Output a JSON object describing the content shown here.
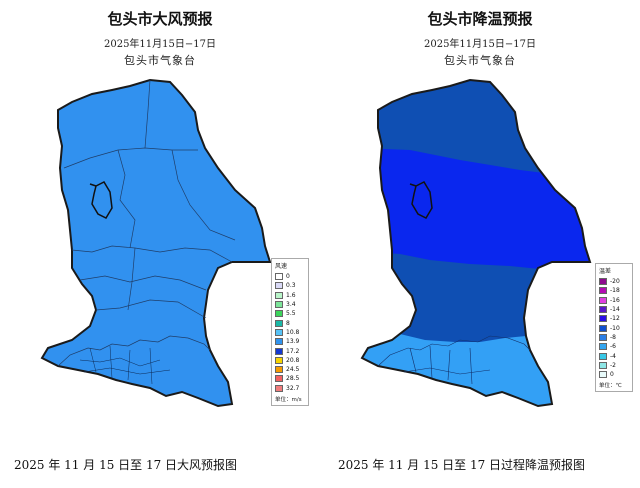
{
  "wind": {
    "title": "包头市大风预报",
    "date_range": "2025年11月15日−17日",
    "source": "包头市气象台",
    "legend_title": "风速",
    "legend_unit": "单位：m/s",
    "legend": [
      {
        "label": "0",
        "color": "#ffffff"
      },
      {
        "label": "0.3",
        "color": "#d9d9f6"
      },
      {
        "label": "1.6",
        "color": "#b9f5c9"
      },
      {
        "label": "3.4",
        "color": "#7de59a"
      },
      {
        "label": "5.5",
        "color": "#3bd45b"
      },
      {
        "label": "8",
        "color": "#19b8a6"
      },
      {
        "label": "10.8",
        "color": "#56c2f6"
      },
      {
        "label": "13.9",
        "color": "#2f93ee"
      },
      {
        "label": "17.2",
        "color": "#1238d2"
      },
      {
        "label": "20.8",
        "color": "#f6d300"
      },
      {
        "label": "24.5",
        "color": "#f69b00"
      },
      {
        "label": "28.5",
        "color": "#f26060"
      },
      {
        "label": "32.7",
        "color": "#f07c7c"
      }
    ],
    "caption": "2025 年 11 月 15 日至 17 日大风预报图"
  },
  "cooling": {
    "title": "包头市降温预报",
    "date_range": "2025年11月15日−17日",
    "source": "包头市气象台",
    "legend_title": "温差",
    "legend_unit": "单位：℃",
    "legend": [
      {
        "label": "-20",
        "color": "#8e0a8e"
      },
      {
        "label": "-18",
        "color": "#b40bb4"
      },
      {
        "label": "-16",
        "color": "#e040e0"
      },
      {
        "label": "-14",
        "color": "#5a18c8"
      },
      {
        "label": "-12",
        "color": "#2a0ee6"
      },
      {
        "label": "-10",
        "color": "#0f4fcf"
      },
      {
        "label": "-8",
        "color": "#2b7fe6"
      },
      {
        "label": "-6",
        "color": "#33a5ef"
      },
      {
        "label": "-4",
        "color": "#38c7e6"
      },
      {
        "label": "-2",
        "color": "#8ee6e6"
      },
      {
        "label": "0",
        "color": "#e8fbfb"
      }
    ],
    "caption": "2025 年 11 月 15 日至 17 日过程降温预报图"
  },
  "colors": {
    "wind_fill": "#2f8ff0",
    "wind_fill_light": "#3a9bf2",
    "cool_north": "#0f4fb3",
    "cool_mid": "#0a28f0",
    "cool_south": "#33a0f5",
    "border": "#1a1a1a"
  }
}
